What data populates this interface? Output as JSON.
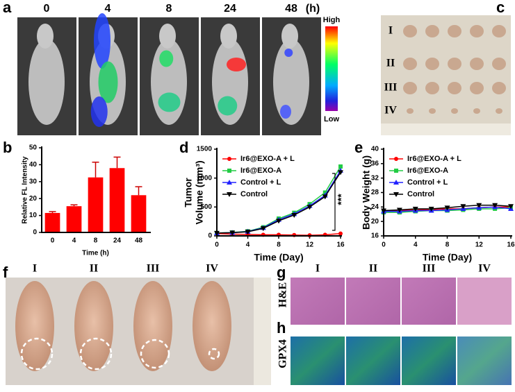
{
  "panels": {
    "a": {
      "label": "a",
      "times": [
        "0",
        "4",
        "8",
        "24",
        "48"
      ],
      "unit": "(h)",
      "high": "High",
      "low": "Low"
    },
    "b": {
      "label": "b"
    },
    "c": {
      "label": "c",
      "rows": [
        "I",
        "II",
        "III",
        "IV"
      ]
    },
    "d": {
      "label": "d"
    },
    "e": {
      "label": "e"
    },
    "f": {
      "label": "f",
      "groups": [
        "I",
        "II",
        "III",
        "IV"
      ]
    },
    "g": {
      "label": "g",
      "columns": [
        "I",
        "II",
        "III",
        "IV"
      ],
      "row": "H&E"
    },
    "h": {
      "label": "h",
      "row": "GPX4"
    }
  },
  "chart_data": [
    {
      "type": "bar",
      "ylabel": [
        "Relative FL Intensity"
      ],
      "xlabel": "Time (h)",
      "categories": [
        "0",
        "4",
        "8",
        "24",
        "48"
      ],
      "values": [
        11.5,
        15.5,
        32.5,
        38,
        22
      ],
      "errors": [
        0.8,
        0.8,
        9,
        6.5,
        5
      ],
      "color": "#ff0000",
      "ylim": [
        0,
        50
      ],
      "yticks": [
        0,
        10,
        20,
        30,
        40,
        50
      ]
    },
    {
      "type": "line",
      "ylabel": [
        "Tumor",
        "Volume (mm³)"
      ],
      "xlabel": "Time (Day)",
      "annotation": "***",
      "x": [
        0,
        2,
        4,
        6,
        8,
        10,
        12,
        14,
        16
      ],
      "xlim": [
        0,
        16
      ],
      "xticks": [
        0,
        4,
        8,
        12,
        16
      ],
      "ylim": [
        0,
        1500
      ],
      "yticks": [
        0,
        500,
        1000,
        1500
      ],
      "series": [
        {
          "name": "Ir6@EXO-A + L",
          "color": "#ff0000",
          "values": [
            40,
            30,
            25,
            20,
            20,
            15,
            10,
            20,
            40
          ]
        },
        {
          "name": "Ir6@EXO-A",
          "color": "#22cc44",
          "values": [
            50,
            60,
            80,
            150,
            300,
            400,
            550,
            750,
            1200
          ]
        },
        {
          "name": "Control + L",
          "color": "#2222ff",
          "values": [
            50,
            55,
            75,
            140,
            280,
            380,
            520,
            700,
            1130
          ]
        },
        {
          "name": "Control",
          "color": "#000000",
          "values": [
            50,
            55,
            70,
            130,
            260,
            360,
            500,
            680,
            1100
          ]
        }
      ]
    },
    {
      "type": "line",
      "ylabel": [
        "Body Weight (g)"
      ],
      "xlabel": "Time (Day)",
      "x": [
        0,
        2,
        4,
        6,
        8,
        10,
        12,
        14,
        16
      ],
      "xlim": [
        0,
        16
      ],
      "xticks": [
        0,
        4,
        8,
        12,
        16
      ],
      "ylim": [
        16,
        40
      ],
      "yticks": [
        16,
        20,
        24,
        28,
        32,
        36,
        40
      ],
      "series": [
        {
          "name": "Ir6@EXO-A + L",
          "color": "#ff0000",
          "values": [
            23,
            23,
            23.2,
            23.3,
            23.5,
            23.5,
            23.8,
            24,
            24
          ]
        },
        {
          "name": "Ir6@EXO-A",
          "color": "#22cc44",
          "values": [
            22.5,
            22.5,
            22.8,
            23,
            23,
            23.2,
            23.5,
            23.5,
            23.8
          ]
        },
        {
          "name": "Control + L",
          "color": "#2222ff",
          "values": [
            22.8,
            22.8,
            23,
            23,
            23.2,
            23.5,
            23.8,
            24,
            23.5
          ]
        },
        {
          "name": "Control",
          "color": "#000000",
          "values": [
            23,
            23.2,
            23.5,
            23.5,
            23.8,
            24.2,
            24.5,
            24.5,
            24.2
          ]
        }
      ]
    }
  ]
}
